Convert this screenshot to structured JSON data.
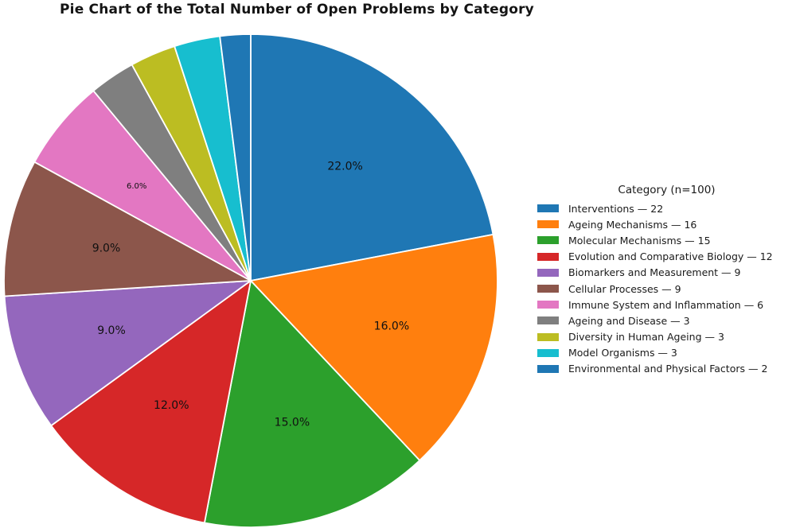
{
  "chart_data": {
    "type": "pie",
    "title": "Pie Chart of the Total Number of Open Problems by Category",
    "legend_title": "Category (n=100)",
    "total": 100,
    "start_angle_deg": 90,
    "direction": "clockwise",
    "legend_position": "right",
    "background_color": "#ffffff",
    "slices": [
      {
        "label": "Interventions",
        "value": 22,
        "pct_label": "22.0%",
        "color": "#1f77b4",
        "legend_label": "Interventions — 22"
      },
      {
        "label": "Ageing Mechanisms",
        "value": 16,
        "pct_label": "16.0%",
        "color": "#ff7f0e",
        "legend_label": "Ageing Mechanisms — 16"
      },
      {
        "label": "Molecular Mechanisms",
        "value": 15,
        "pct_label": "15.0%",
        "color": "#2ca02c",
        "legend_label": "Molecular Mechanisms — 15"
      },
      {
        "label": "Evolution and Comparative Biology",
        "value": 12,
        "pct_label": "12.0%",
        "color": "#d62728",
        "legend_label": "Evolution and Comparative Biology — 12"
      },
      {
        "label": "Biomarkers and Measurement",
        "value": 9,
        "pct_label": "9.0%",
        "color": "#9467bd",
        "legend_label": "Biomarkers and Measurement — 9"
      },
      {
        "label": "Cellular Processes",
        "value": 9,
        "pct_label": "9.0%",
        "color": "#8c564b",
        "legend_label": "Cellular Processes — 9"
      },
      {
        "label": "Immune System and Inflammation",
        "value": 6,
        "pct_label": "6.0%",
        "color": "#e377c2",
        "legend_label": "Immune System and Inflammation — 6"
      },
      {
        "label": "Ageing and Disease",
        "value": 3,
        "pct_label": "",
        "color": "#7f7f7f",
        "legend_label": "Ageing and Disease — 3"
      },
      {
        "label": "Diversity in Human Ageing",
        "value": 3,
        "pct_label": "",
        "color": "#bcbd22",
        "legend_label": "Diversity in Human Ageing — 3"
      },
      {
        "label": "Model Organisms",
        "value": 3,
        "pct_label": "",
        "color": "#17becf",
        "legend_label": "Model Organisms — 3"
      },
      {
        "label": "Environmental and Physical Factors",
        "value": 2,
        "pct_label": "",
        "color": "#1f77b4",
        "legend_label": "Environmental and Physical Factors — 2"
      }
    ]
  }
}
